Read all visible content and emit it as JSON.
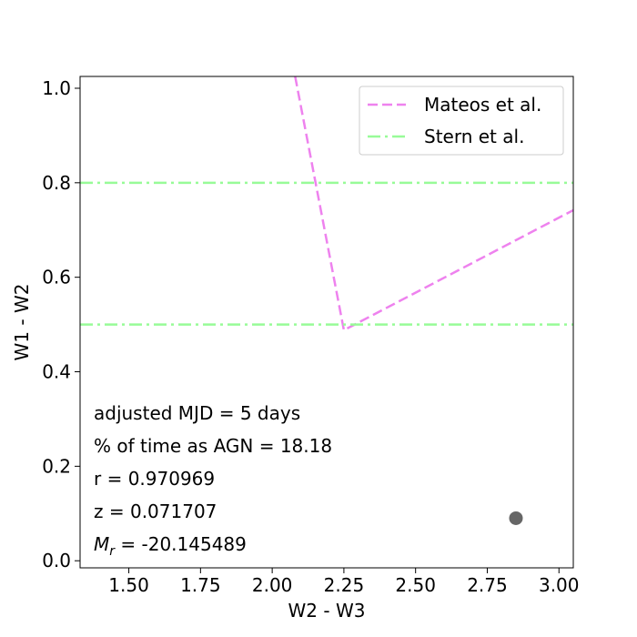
{
  "chart_data": {
    "type": "scatter",
    "title": "",
    "xlabel": "W2 - W3",
    "ylabel": "W1 - W2",
    "xlim": [
      1.33,
      3.05
    ],
    "ylim": [
      -0.015,
      1.025
    ],
    "x_ticks": [
      1.5,
      1.75,
      2.0,
      2.25,
      2.5,
      2.75,
      3.0
    ],
    "x_tick_labels": [
      "1.50",
      "1.75",
      "2.00",
      "2.25",
      "2.50",
      "2.75",
      "3.00"
    ],
    "y_ticks": [
      0.0,
      0.2,
      0.4,
      0.6,
      0.8,
      1.0
    ],
    "y_tick_labels": [
      "0.0",
      "0.2",
      "0.4",
      "0.6",
      "0.8",
      "1.0"
    ],
    "grid": false,
    "legend_position": "top-right",
    "series": [
      {
        "name": "Mateos et al.",
        "style": "dashed",
        "color": "#ee82ee",
        "x": [
          2.08,
          2.25,
          3.05
        ],
        "y": [
          1.025,
          0.488,
          0.742
        ]
      },
      {
        "name": "Stern et al.",
        "style": "dashdot",
        "color": "#98fb98",
        "lines": [
          {
            "x": [
              1.33,
              3.05
            ],
            "y": [
              0.8,
              0.8
            ]
          },
          {
            "x": [
              1.33,
              3.05
            ],
            "y": [
              0.5,
              0.5
            ]
          }
        ]
      },
      {
        "name": "",
        "style": "marker",
        "color": "#666666",
        "x": [
          2.85
        ],
        "y": [
          0.09
        ]
      }
    ],
    "annotations": [
      {
        "key": "mjd",
        "text": "adjusted MJD = 5 days"
      },
      {
        "key": "agn",
        "text": "% of time as AGN = 18.18"
      },
      {
        "key": "r",
        "text": "r = 0.970969"
      },
      {
        "key": "z",
        "text": "z = 0.071707"
      },
      {
        "key": "mr",
        "prefix": "M",
        "subscript": "r",
        "text": " = -20.145489"
      }
    ]
  }
}
